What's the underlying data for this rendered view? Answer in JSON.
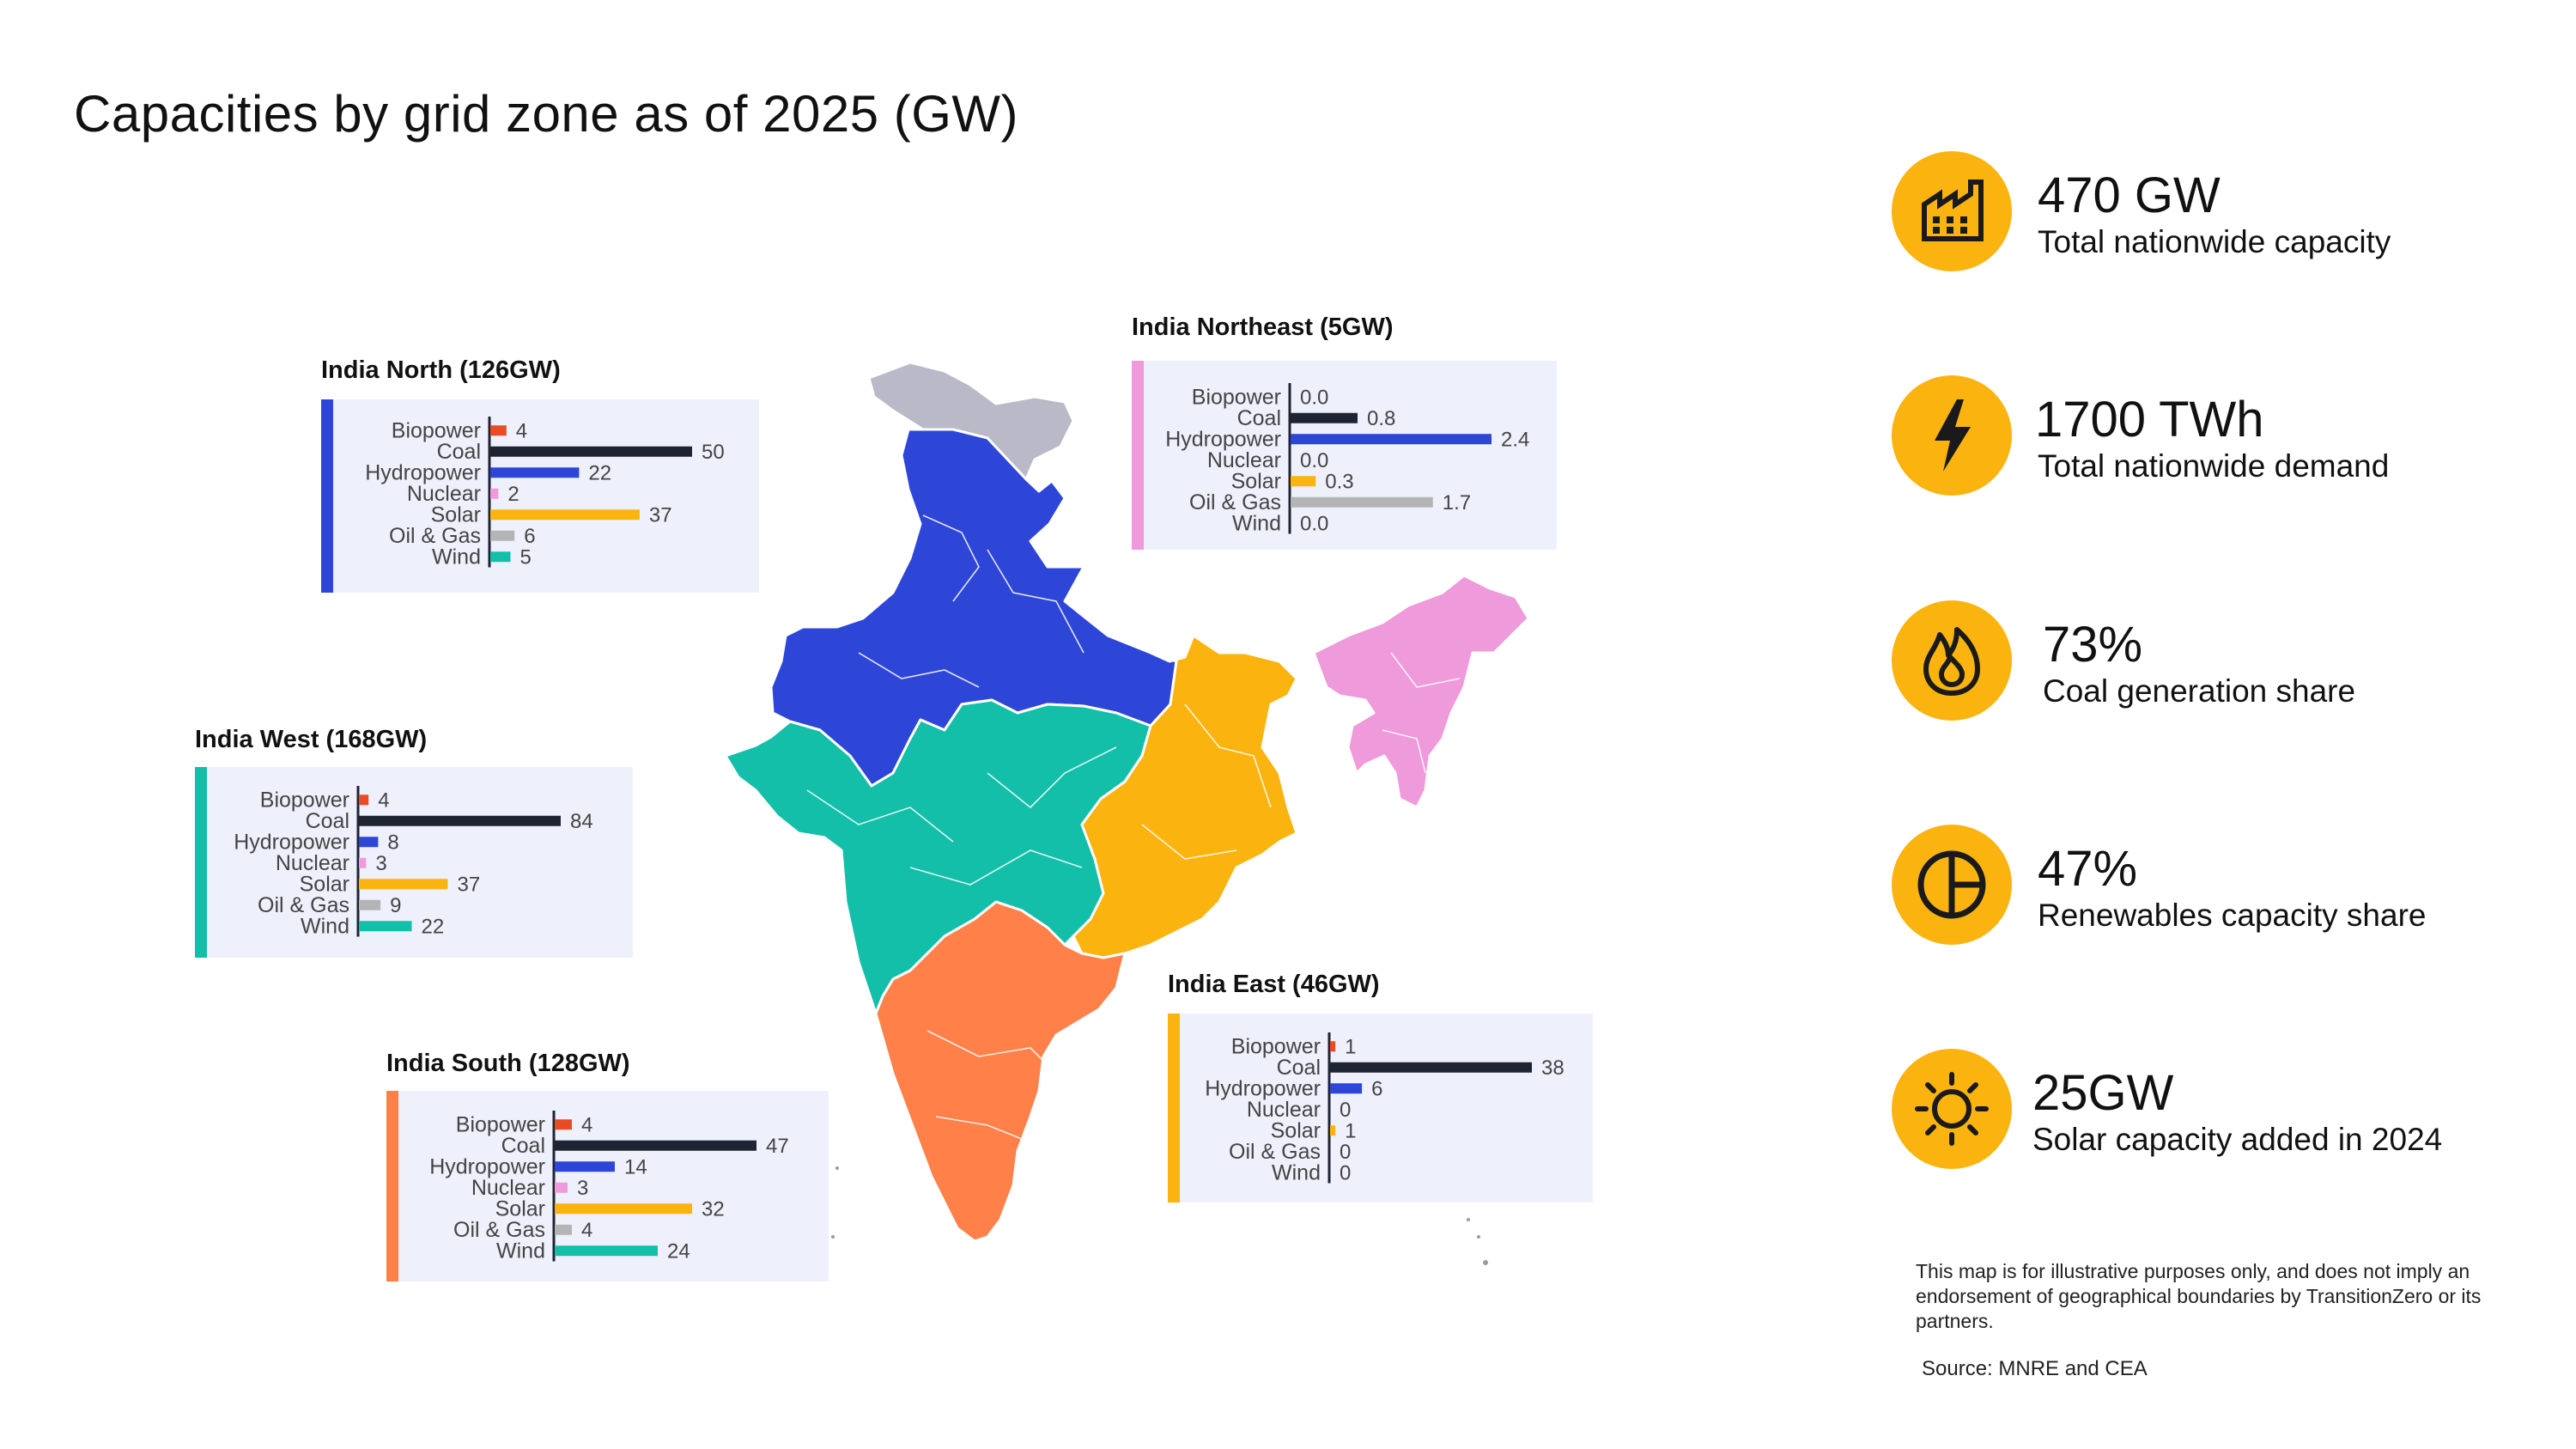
{
  "title": "Capacities by grid zone as of 2025 (GW)",
  "colors": {
    "north": "#2e46d8",
    "west": "#13bfa9",
    "south": "#ff8149",
    "east": "#fbb40f",
    "northeast": "#ef9ada",
    "disputed": "#b9b9c7",
    "panel_bg": "#eef1fb",
    "accent": "#fbb40f",
    "biopower": "#ea4b25",
    "coal": "#1f2433",
    "hydropower": "#2e46d8",
    "nuclear": "#ef9ada",
    "solar": "#fbb40f",
    "oil_gas": "#b4b4b4",
    "wind": "#13bfa9"
  },
  "chart_data": [
    {
      "type": "bar",
      "title": "India North (126GW)",
      "categories": [
        "Biopower",
        "Coal",
        "Hydropower",
        "Nuclear",
        "Solar",
        "Oil & Gas",
        "Wind"
      ],
      "values": [
        4,
        50,
        22,
        2,
        37,
        6,
        5
      ],
      "value_labels": [
        "4",
        "50",
        "22",
        "2",
        "37",
        "6",
        "5"
      ]
    },
    {
      "type": "bar",
      "title": "India Northeast (5GW)",
      "categories": [
        "Biopower",
        "Coal",
        "Hydropower",
        "Nuclear",
        "Solar",
        "Oil & Gas",
        "Wind"
      ],
      "values": [
        0.0,
        0.8,
        2.4,
        0.0,
        0.3,
        1.7,
        0.0
      ],
      "value_labels": [
        "0.0",
        "0.8",
        "2.4",
        "0.0",
        "0.3",
        "1.7",
        "0.0"
      ]
    },
    {
      "type": "bar",
      "title": "India West (168GW)",
      "categories": [
        "Biopower",
        "Coal",
        "Hydropower",
        "Nuclear",
        "Solar",
        "Oil & Gas",
        "Wind"
      ],
      "values": [
        4,
        84,
        8,
        3,
        37,
        9,
        22
      ],
      "value_labels": [
        "4",
        "84",
        "8",
        "3",
        "37",
        "9",
        "22"
      ]
    },
    {
      "type": "bar",
      "title": "India East (46GW)",
      "categories": [
        "Biopower",
        "Coal",
        "Hydropower",
        "Nuclear",
        "Solar",
        "Oil & Gas",
        "Wind"
      ],
      "values": [
        1,
        38,
        6,
        0,
        1,
        0,
        0
      ],
      "value_labels": [
        "1",
        "38",
        "6",
        "0",
        "1",
        "0",
        "0"
      ]
    },
    {
      "type": "bar",
      "title": "India South (128GW)",
      "categories": [
        "Biopower",
        "Coal",
        "Hydropower",
        "Nuclear",
        "Solar",
        "Oil & Gas",
        "Wind"
      ],
      "values": [
        4,
        47,
        14,
        3,
        32,
        4,
        24
      ],
      "value_labels": [
        "4",
        "47",
        "14",
        "3",
        "32",
        "4",
        "24"
      ]
    }
  ],
  "stats": [
    {
      "value": "470 GW",
      "label": "Total nationwide capacity",
      "icon": "factory-icon"
    },
    {
      "value": "1700 TWh",
      "label": "Total nationwide demand",
      "icon": "lightning-icon"
    },
    {
      "value": "73%",
      "label": "Coal generation share",
      "icon": "flame-icon"
    },
    {
      "value": "47%",
      "label": "Renewables capacity share",
      "icon": "pie-chart-icon"
    },
    {
      "value": "25GW",
      "label": "Solar capacity added in 2024",
      "icon": "sun-icon"
    }
  ],
  "disclaimer": "This map is for illustrative purposes only, and does not imply an endorsement of geographical boundaries by TransitionZero or its partners.",
  "source": "Source: MNRE and CEA"
}
